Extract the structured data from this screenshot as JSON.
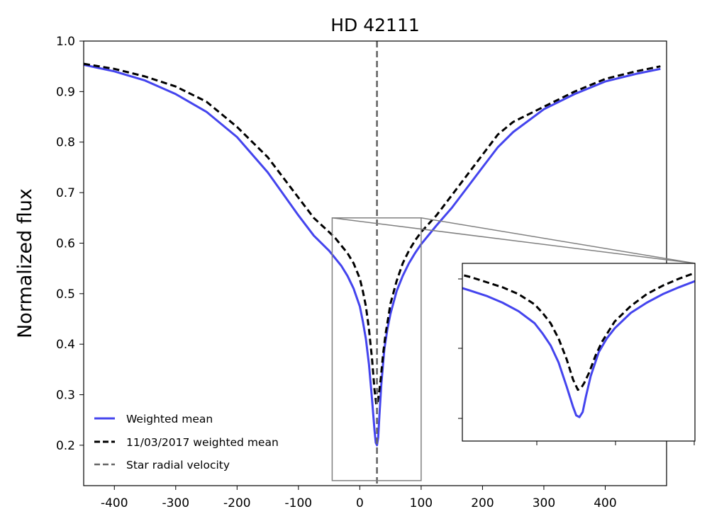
{
  "chart_data": {
    "type": "line",
    "title": "HD 42111",
    "xlabel": "",
    "ylabel": "Normalized flux",
    "xlim": [
      -450,
      500
    ],
    "ylim": [
      0.12,
      1.0
    ],
    "xticks": [
      -400,
      -300,
      -200,
      -100,
      0,
      100,
      200,
      300,
      400
    ],
    "xtick_labels": [
      "-400",
      "-300",
      "-200",
      "-100",
      "0",
      "100",
      "200",
      "300",
      "400"
    ],
    "yticks": [
      0.2,
      0.3,
      0.4,
      0.5,
      0.6,
      0.7,
      0.8,
      0.9,
      1.0
    ],
    "ytick_labels": [
      "0.2",
      "0.3",
      "0.4",
      "0.5",
      "0.6",
      "0.7",
      "0.8",
      "0.9",
      "1.0"
    ],
    "legend_position": "lower-left",
    "series": [
      {
        "name": "Weighted mean",
        "color": "#4444ee",
        "style": "solid",
        "x": [
          -450,
          -400,
          -350,
          -300,
          -250,
          -200,
          -150,
          -100,
          -75,
          -50,
          -40,
          -30,
          -20,
          -10,
          0,
          5,
          10,
          15,
          20,
          24,
          26,
          28,
          30,
          32,
          35,
          40,
          45,
          50,
          60,
          70,
          80,
          90,
          100,
          125,
          150,
          175,
          200,
          225,
          250,
          300,
          350,
          400,
          450,
          490
        ],
        "values": [
          0.953,
          0.94,
          0.922,
          0.895,
          0.86,
          0.81,
          0.74,
          0.655,
          0.615,
          0.585,
          0.57,
          0.555,
          0.535,
          0.51,
          0.475,
          0.445,
          0.41,
          0.36,
          0.29,
          0.23,
          0.205,
          0.2,
          0.215,
          0.26,
          0.32,
          0.39,
          0.43,
          0.46,
          0.505,
          0.535,
          0.56,
          0.58,
          0.598,
          0.635,
          0.67,
          0.71,
          0.75,
          0.79,
          0.82,
          0.865,
          0.895,
          0.92,
          0.935,
          0.945
        ]
      },
      {
        "name": "11/03/2017 weighted mean",
        "color": "#000000",
        "style": "dashed",
        "x": [
          -450,
          -400,
          -350,
          -300,
          -250,
          -200,
          -150,
          -100,
          -75,
          -50,
          -40,
          -30,
          -20,
          -10,
          0,
          5,
          10,
          15,
          20,
          24,
          27,
          29,
          31,
          34,
          38,
          42,
          46,
          50,
          60,
          70,
          80,
          90,
          100,
          125,
          150,
          175,
          200,
          225,
          250,
          300,
          350,
          400,
          450,
          490
        ],
        "values": [
          0.955,
          0.945,
          0.93,
          0.91,
          0.88,
          0.83,
          0.77,
          0.69,
          0.65,
          0.622,
          0.61,
          0.595,
          0.58,
          0.56,
          0.53,
          0.505,
          0.475,
          0.43,
          0.37,
          0.31,
          0.28,
          0.285,
          0.3,
          0.33,
          0.38,
          0.42,
          0.45,
          0.48,
          0.525,
          0.56,
          0.585,
          0.605,
          0.622,
          0.655,
          0.695,
          0.735,
          0.775,
          0.815,
          0.84,
          0.87,
          0.9,
          0.925,
          0.94,
          0.95
        ]
      }
    ],
    "reference_line": {
      "name": "Star radial velocity",
      "x": 28,
      "color": "#666666",
      "style": "dashed"
    },
    "inset": {
      "xlim": [
        -45,
        100
      ],
      "ylim": [
        0.13,
        0.65
      ],
      "ticks_visible": false
    }
  }
}
